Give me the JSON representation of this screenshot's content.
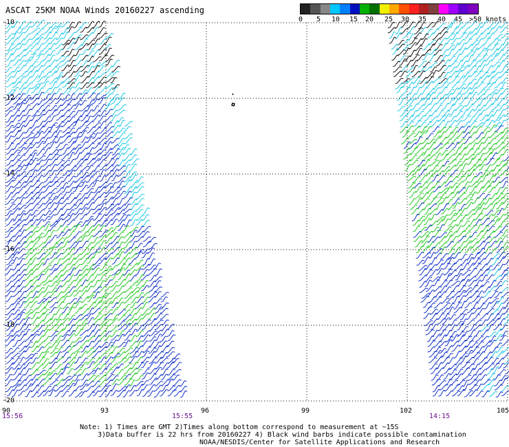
{
  "title": "ASCAT 25KM NOAA Winds 20160227 ascending",
  "legend": {
    "colors": [
      "#222222",
      "#555555",
      "#888888",
      "#00c8ff",
      "#0080ff",
      "#0010c0",
      "#00b000",
      "#007000",
      "#f0f000",
      "#ffa800",
      "#ff5000",
      "#ff2020",
      "#b02020",
      "#804040",
      "#ff00ff",
      "#a000ff",
      "#6000d0",
      "#8000c0"
    ],
    "labels": [
      "0",
      "5",
      "10",
      "15",
      "20",
      "25",
      "30",
      "35",
      "40",
      "45",
      ">50 knots"
    ]
  },
  "lat_labels": [
    "-10",
    "-12",
    "-14",
    "-16",
    "-18",
    "-20"
  ],
  "lon_labels": [
    "90",
    "93",
    "96",
    "99",
    "102",
    "105"
  ],
  "time_labels": [
    "15:56",
    "15:55",
    "14:15"
  ],
  "notes": {
    "line1": "Note: 1) Times are GMT 2)Times along bottom correspond to measurement at ~15S",
    "line2": "3)Data buffer is 22 hrs from 20160227 4) Black wind barbs indicate possible contamination",
    "line3": "NOAA/NESDIS/Center for Satellite Applications and Research"
  },
  "swaths": [
    {
      "name": "west",
      "wind_bands": [
        "cyan",
        "blue",
        "green",
        "blue"
      ]
    },
    {
      "name": "east",
      "wind_bands": [
        "cyan",
        "green",
        "blue"
      ]
    }
  ]
}
